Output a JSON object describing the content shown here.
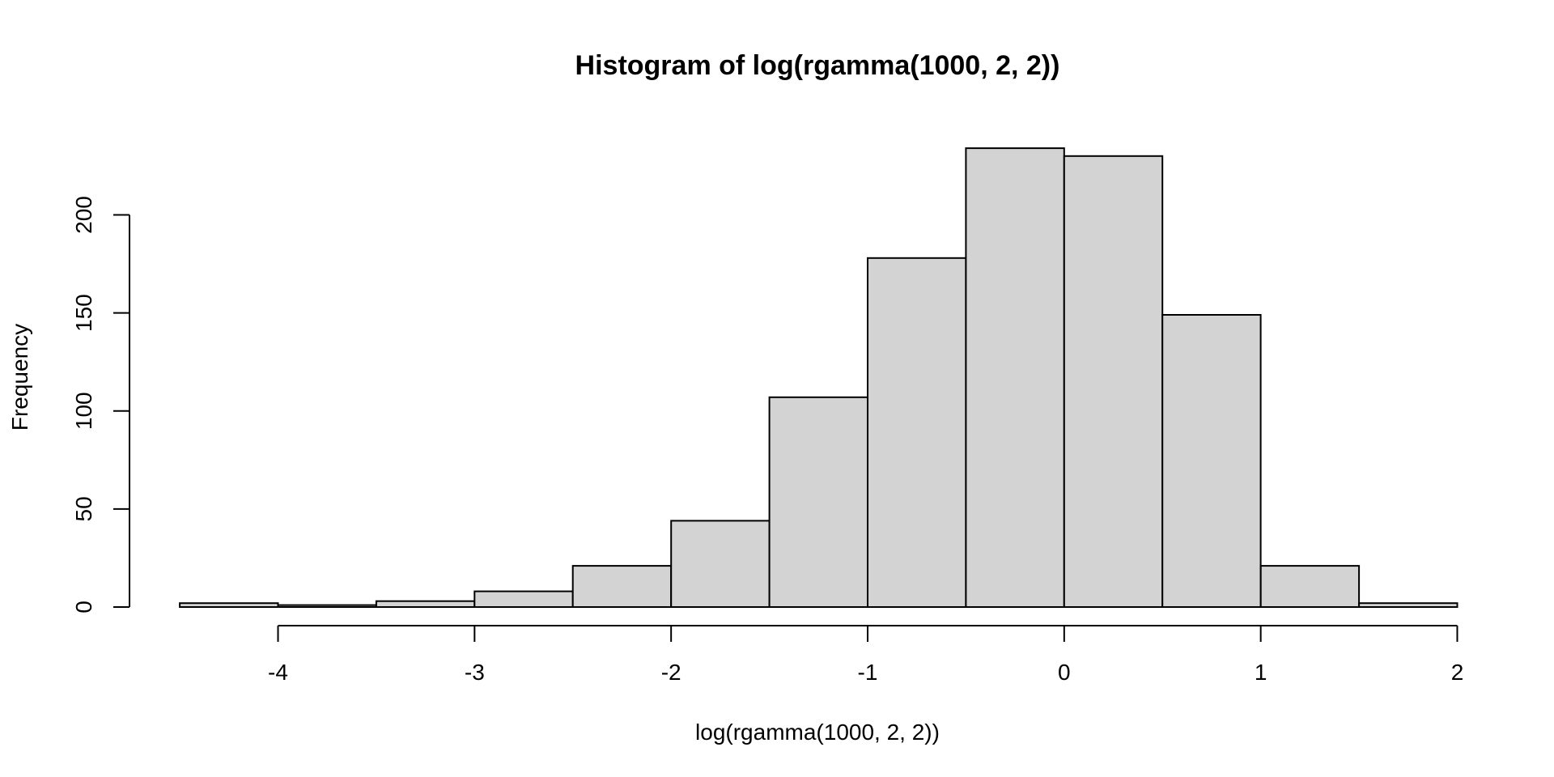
{
  "chart_data": {
    "type": "bar",
    "title": "Histogram of log(rgamma(1000, 2, 2))",
    "xlabel": "log(rgamma(1000, 2, 2))",
    "ylabel": "Frequency",
    "bin_edges": [
      -4.5,
      -4.0,
      -3.5,
      -3.0,
      -2.5,
      -2.0,
      -1.5,
      -1.0,
      -0.5,
      0.0,
      0.5,
      1.0,
      1.5,
      2.0
    ],
    "values": [
      2,
      1,
      3,
      8,
      21,
      44,
      107,
      178,
      234,
      230,
      149,
      21,
      2
    ],
    "xlim": [
      -4.5,
      2.0
    ],
    "ylim": [
      0,
      234
    ],
    "x_ticks": [
      -4,
      -3,
      -2,
      -1,
      0,
      1,
      2
    ],
    "x_tick_labels": [
      "-4",
      "-3",
      "-2",
      "-1",
      "0",
      "1",
      "2"
    ],
    "y_ticks": [
      0,
      50,
      100,
      150,
      200
    ],
    "y_tick_labels": [
      "0",
      "50",
      "100",
      "150",
      "200"
    ],
    "bar_fill": "#d3d3d3",
    "bar_stroke": "#000000",
    "grid": false,
    "legend": "none"
  }
}
